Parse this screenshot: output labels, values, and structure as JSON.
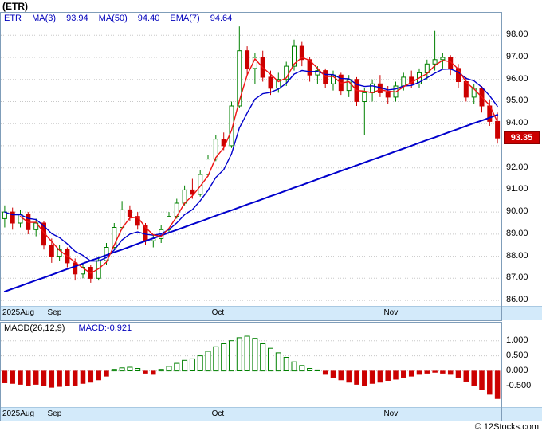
{
  "title": "(ETR)",
  "legend": {
    "symbol": "ETR",
    "items": [
      {
        "label": "MA(3)",
        "value": "93.94"
      },
      {
        "label": "MA(50)",
        "value": "94.40"
      },
      {
        "label": "EMA(7)",
        "value": "94.64"
      }
    ]
  },
  "price_badge": "93.35",
  "macd_legend": {
    "label": "MACD(26,12,9)",
    "value": "MACD:-0.921"
  },
  "footer": "© 12Stocks.com",
  "colors": {
    "up": "#008000",
    "down": "#cc0000",
    "ma3": "#ee1111",
    "ema7": "#0000cc",
    "ma50": "#0000cc",
    "grid": "#c8c8c8",
    "band": "#d3eafa",
    "badge_bg": "#cc0000",
    "legend_text": "#0000bb",
    "panel_border": "#7f9db9"
  },
  "chart_data": [
    {
      "type": "candlestick",
      "title": "ETR daily price with MA(3), EMA(7), MA(50)",
      "ylim": [
        85.75,
        98.55
      ],
      "y_tick_labels": [
        "98.00",
        "97.00",
        "96.00",
        "95.00",
        "94.00",
        "92.00",
        "91.00",
        "90.00",
        "89.00",
        "88.00",
        "87.00",
        "86.00"
      ],
      "x_axis_labels": [
        "2025Aug",
        "Sep",
        "Oct",
        "Nov"
      ],
      "month_start_indices": [
        0,
        8,
        29,
        51
      ],
      "candles": [
        [
          89.7,
          90.3,
          89.3,
          90.0
        ],
        [
          90.0,
          90.2,
          89.2,
          89.5
        ],
        [
          89.5,
          90.1,
          89.3,
          89.9
        ],
        [
          89.9,
          90.0,
          89.0,
          89.2
        ],
        [
          89.2,
          89.7,
          88.9,
          89.5
        ],
        [
          89.5,
          89.6,
          88.3,
          88.5
        ],
        [
          88.5,
          88.8,
          87.7,
          88.0
        ],
        [
          88.0,
          88.5,
          87.8,
          88.3
        ],
        [
          88.3,
          88.4,
          87.5,
          87.7
        ],
        [
          87.7,
          87.9,
          86.9,
          87.2
        ],
        [
          87.2,
          87.7,
          87.0,
          87.5
        ],
        [
          87.5,
          87.6,
          86.8,
          87.0
        ],
        [
          87.0,
          88.0,
          86.9,
          87.8
        ],
        [
          87.8,
          88.6,
          87.6,
          88.4
        ],
        [
          88.4,
          89.5,
          88.3,
          89.3
        ],
        [
          89.3,
          90.5,
          89.2,
          90.1
        ],
        [
          90.1,
          90.3,
          89.6,
          89.8
        ],
        [
          89.8,
          90.0,
          89.2,
          89.4
        ],
        [
          89.4,
          89.5,
          88.5,
          88.7
        ],
        [
          88.7,
          89.0,
          88.4,
          88.8
        ],
        [
          88.8,
          89.4,
          88.6,
          89.2
        ],
        [
          89.2,
          90.0,
          89.1,
          89.8
        ],
        [
          89.8,
          90.6,
          89.7,
          90.4
        ],
        [
          90.4,
          91.2,
          90.3,
          91.0
        ],
        [
          91.0,
          91.5,
          90.6,
          90.8
        ],
        [
          90.8,
          91.9,
          90.7,
          91.7
        ],
        [
          91.7,
          92.6,
          91.6,
          92.4
        ],
        [
          92.4,
          93.5,
          92.3,
          93.3
        ],
        [
          93.3,
          93.6,
          92.8,
          93.0
        ],
        [
          93.0,
          95.0,
          92.9,
          94.8
        ],
        [
          94.8,
          98.4,
          94.7,
          97.3
        ],
        [
          97.3,
          97.5,
          96.2,
          96.5
        ],
        [
          96.5,
          97.2,
          95.8,
          97.0
        ],
        [
          97.0,
          97.3,
          95.9,
          96.1
        ],
        [
          96.1,
          96.4,
          95.3,
          95.6
        ],
        [
          95.6,
          96.3,
          95.4,
          96.0
        ],
        [
          96.0,
          96.8,
          95.7,
          96.6
        ],
        [
          96.6,
          97.8,
          96.4,
          97.5
        ],
        [
          97.5,
          97.7,
          96.6,
          96.9
        ],
        [
          96.9,
          97.0,
          95.9,
          96.2
        ],
        [
          96.2,
          96.6,
          95.8,
          96.4
        ],
        [
          96.4,
          96.5,
          95.6,
          95.8
        ],
        [
          95.8,
          96.4,
          95.5,
          96.2
        ],
        [
          96.2,
          96.3,
          95.3,
          95.5
        ],
        [
          95.5,
          96.2,
          95.2,
          96.0
        ],
        [
          96.0,
          96.1,
          94.8,
          95.0
        ],
        [
          95.0,
          95.6,
          93.5,
          95.4
        ],
        [
          95.4,
          96.0,
          95.0,
          95.8
        ],
        [
          95.8,
          96.2,
          95.2,
          95.4
        ],
        [
          95.4,
          95.7,
          94.9,
          95.2
        ],
        [
          95.2,
          95.9,
          95.0,
          95.7
        ],
        [
          95.7,
          96.3,
          95.5,
          96.1
        ],
        [
          96.1,
          96.4,
          95.6,
          95.8
        ],
        [
          95.8,
          96.5,
          95.6,
          96.3
        ],
        [
          96.3,
          96.9,
          96.0,
          96.7
        ],
        [
          96.7,
          98.2,
          96.4,
          96.9
        ],
        [
          96.9,
          97.2,
          96.5,
          97.0
        ],
        [
          97.0,
          97.1,
          96.2,
          96.5
        ],
        [
          96.5,
          96.7,
          95.6,
          95.9
        ],
        [
          95.9,
          96.1,
          95.0,
          95.2
        ],
        [
          95.2,
          95.8,
          94.9,
          95.6
        ],
        [
          95.6,
          95.7,
          94.5,
          94.8
        ],
        [
          94.8,
          95.1,
          93.9,
          94.1
        ],
        [
          94.1,
          94.5,
          93.1,
          93.35
        ]
      ],
      "ma50": [
        86.4,
        86.53,
        86.65,
        86.78,
        86.91,
        87.03,
        87.16,
        87.29,
        87.42,
        87.54,
        87.67,
        87.8,
        87.92,
        88.05,
        88.18,
        88.3,
        88.43,
        88.56,
        88.69,
        88.81,
        88.94,
        89.07,
        89.19,
        89.32,
        89.45,
        89.57,
        89.7,
        89.83,
        89.96,
        90.08,
        90.21,
        90.34,
        90.46,
        90.59,
        90.72,
        90.84,
        90.97,
        91.1,
        91.22,
        91.35,
        91.48,
        91.61,
        91.73,
        91.86,
        91.99,
        92.11,
        92.24,
        92.37,
        92.49,
        92.62,
        92.75,
        92.87,
        93.0,
        93.13,
        93.26,
        93.38,
        93.51,
        93.64,
        93.76,
        93.89,
        94.02,
        94.14,
        94.27,
        94.4
      ]
    },
    {
      "type": "bar",
      "title": "MACD(26,12,9) histogram",
      "ylim": [
        -1.2,
        1.6
      ],
      "y_tick_labels": [
        "1.000",
        "0.500",
        "0.000",
        "-0.500"
      ],
      "x_axis_labels": [
        "2025Aug",
        "Sep",
        "Oct",
        "Nov"
      ],
      "month_start_indices": [
        0,
        8,
        29,
        51
      ],
      "values": [
        -0.4,
        -0.42,
        -0.45,
        -0.48,
        -0.45,
        -0.5,
        -0.55,
        -0.52,
        -0.5,
        -0.48,
        -0.42,
        -0.38,
        -0.3,
        -0.18,
        0.05,
        0.1,
        0.12,
        0.08,
        -0.08,
        -0.12,
        0.05,
        0.15,
        0.25,
        0.35,
        0.4,
        0.5,
        0.65,
        0.8,
        0.9,
        1.0,
        1.1,
        1.15,
        1.08,
        0.9,
        0.75,
        0.6,
        0.45,
        0.3,
        0.18,
        0.08,
        0.03,
        -0.12,
        -0.22,
        -0.3,
        -0.38,
        -0.45,
        -0.5,
        -0.42,
        -0.38,
        -0.32,
        -0.28,
        -0.22,
        -0.18,
        -0.12,
        -0.08,
        -0.05,
        -0.08,
        -0.12,
        -0.22,
        -0.35,
        -0.48,
        -0.62,
        -0.78,
        -0.921
      ]
    }
  ]
}
